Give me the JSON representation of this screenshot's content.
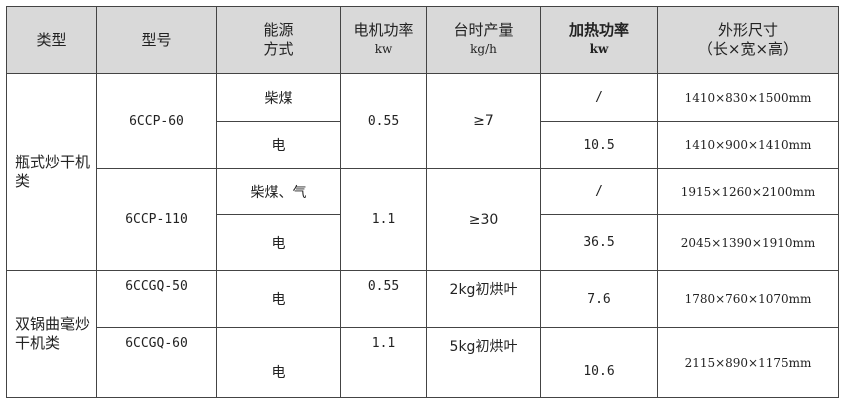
{
  "header": {
    "type": "类型",
    "model": "型号",
    "energy": [
      "能源",
      "方式"
    ],
    "motor_power": {
      "label": "电机功率",
      "unit": "kw"
    },
    "output": {
      "label": "台时产量",
      "unit": "kg/h"
    },
    "heating_power": {
      "label": "加热功率",
      "unit": "kw"
    },
    "dimensions": {
      "label": "外形尺寸",
      "unit": "（长×宽×高）"
    }
  },
  "groups": [
    {
      "type": "瓶式炒干机类",
      "models": [
        {
          "model": "6CCP-60",
          "motor": "0.55",
          "output": "≥7",
          "rows": [
            {
              "energy": "柴煤",
              "heating": "/",
              "dims": "1410×830×1500mm"
            },
            {
              "energy": "电",
              "heating": "10.5",
              "dims": "1410×900×1410mm"
            }
          ]
        },
        {
          "model": "6CCP-110",
          "motor": "1.1",
          "output": "≥30",
          "rows": [
            {
              "energy": "柴煤、气",
              "heating": "/",
              "dims": "1915×1260×2100mm"
            },
            {
              "energy": "电",
              "heating": "36.5",
              "dims": "2045×1390×1910mm"
            }
          ]
        }
      ]
    },
    {
      "type": "双锅曲毫炒干机类",
      "models": [
        {
          "model": "6CCGQ-50",
          "motor": "0.55",
          "output": "2kg初烘叶",
          "energy": "电",
          "heating": "7.6",
          "dims": "1780×760×1070mm"
        },
        {
          "model": "6CCGQ-60",
          "motor": "1.1",
          "output": "5kg初烘叶",
          "energy": "电",
          "heating": "10.6",
          "dims": "2115×890×1175mm"
        }
      ]
    }
  ]
}
